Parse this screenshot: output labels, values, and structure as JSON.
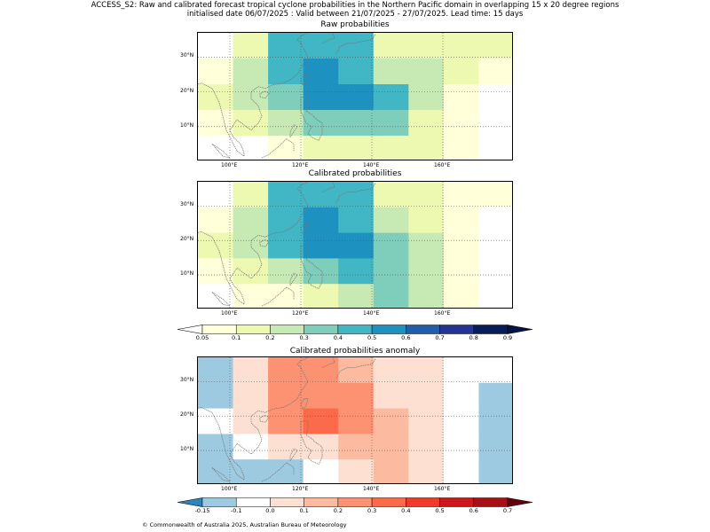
{
  "header": {
    "line1": "ACCESS_S2: Raw and calibrated forecast tropical cyclone probabilities in the Northern Pacific domain in overlapping 15 x 20 degree regions",
    "line2": "initialised date 06/07/2025 :  Valid between 21/07/2025 - 27/07/2025. Lead time: 15 days"
  },
  "lon_labels": [
    "100°E",
    "120°E",
    "140°E",
    "160°E"
  ],
  "lat_labels": [
    "30°N",
    "20°N",
    "10°N"
  ],
  "panels": [
    {
      "title": "Raw probabilities",
      "colormap": "prob",
      "rows": [
        [
          0.0,
          0.15,
          0.45,
          0.45,
          0.45,
          0.15,
          0.15,
          0.15,
          0.12
        ],
        [
          0.07,
          0.25,
          0.45,
          0.55,
          0.45,
          0.25,
          0.25,
          0.15,
          0.07
        ],
        [
          0.15,
          0.25,
          0.35,
          0.55,
          0.55,
          0.45,
          0.25,
          0.07,
          0.0
        ],
        [
          0.07,
          0.15,
          0.25,
          0.35,
          0.35,
          0.35,
          0.15,
          0.07,
          0.0
        ],
        [
          0.0,
          0.0,
          0.07,
          0.15,
          0.15,
          0.15,
          0.15,
          0.07,
          0.0
        ]
      ]
    },
    {
      "title": "Calibrated probabilities",
      "colormap": "prob",
      "rows": [
        [
          0.0,
          0.15,
          0.45,
          0.45,
          0.45,
          0.15,
          0.15,
          0.07,
          0.07
        ],
        [
          0.07,
          0.25,
          0.45,
          0.55,
          0.45,
          0.25,
          0.15,
          0.07,
          0.0
        ],
        [
          0.15,
          0.25,
          0.45,
          0.55,
          0.55,
          0.35,
          0.25,
          0.07,
          0.0
        ],
        [
          0.07,
          0.15,
          0.25,
          0.35,
          0.45,
          0.35,
          0.25,
          0.07,
          0.0
        ],
        [
          0.0,
          0.07,
          0.07,
          0.15,
          0.25,
          0.35,
          0.25,
          0.07,
          0.0
        ]
      ]
    },
    {
      "title": "Calibrated probabilities anomaly",
      "colormap": "anom",
      "rows": [
        [
          -0.12,
          0.0,
          0.25,
          0.25,
          0.15,
          0.0,
          0.0,
          -0.08,
          -0.08
        ],
        [
          -0.12,
          0.05,
          0.25,
          0.25,
          0.25,
          0.05,
          0.0,
          -0.08,
          -0.12
        ],
        [
          -0.08,
          0.05,
          0.25,
          0.35,
          0.25,
          0.15,
          0.05,
          -0.08,
          -0.12
        ],
        [
          -0.12,
          -0.08,
          0.0,
          0.05,
          0.15,
          0.15,
          0.05,
          -0.08,
          -0.12
        ],
        [
          -0.12,
          -0.12,
          -0.12,
          -0.08,
          0.05,
          0.15,
          0.05,
          -0.08,
          -0.12
        ]
      ]
    }
  ],
  "colorbars": {
    "prob": {
      "ticks": [
        "0.05",
        "0.1",
        "0.2",
        "0.3",
        "0.4",
        "0.5",
        "0.6",
        "0.7",
        "0.8",
        "0.9"
      ],
      "colors": [
        "#ffffd9",
        "#edf8b1",
        "#c7e9b4",
        "#7fcdbb",
        "#41b6c4",
        "#1d91c0",
        "#225ea8",
        "#253494",
        "#081d58"
      ],
      "under": "#ffffff",
      "over": "#061440"
    },
    "anom": {
      "ticks": [
        "-0.15",
        "-0.1",
        "0.0",
        "0.1",
        "0.2",
        "0.3",
        "0.4",
        "0.5",
        "0.6",
        "0.7"
      ],
      "colors": [
        "#9ecae1",
        "#ffffff",
        "#fee0d2",
        "#fcbba1",
        "#fc9272",
        "#fb6a4a",
        "#ef3b2c",
        "#cb181d",
        "#a50f15"
      ],
      "under": "#3182bd",
      "over": "#67000d"
    }
  },
  "copyright": "© Commonwealth of Australia 2025, Australian Bureau of Meteorology"
}
